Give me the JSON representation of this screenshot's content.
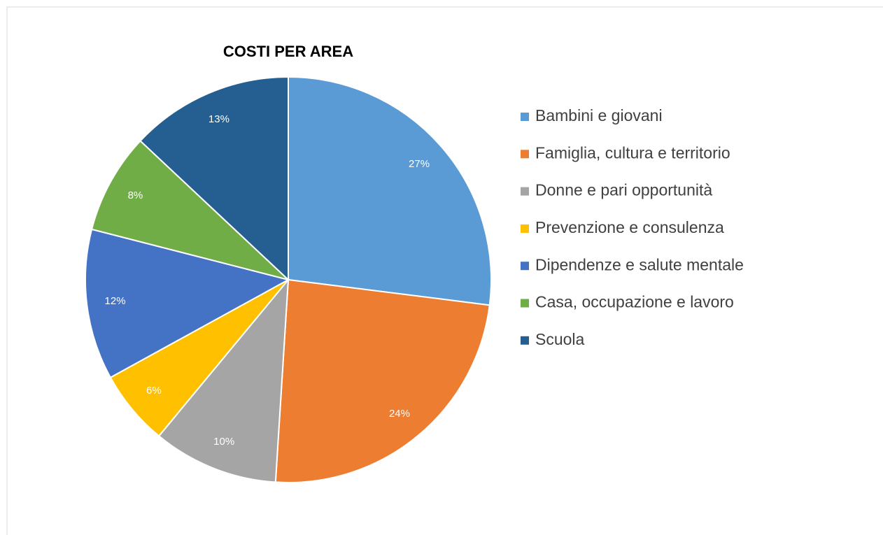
{
  "chart_data": {
    "type": "pie",
    "title": "COSTI PER AREA",
    "categories": [
      "Bambini e giovani",
      "Famiglia, cultura e territorio",
      "Donne e pari opportunità",
      "Prevenzione e consulenza",
      "Dipendenze e salute mentale",
      "Casa, occupazione e lavoro",
      "Scuola"
    ],
    "values": [
      27,
      24,
      10,
      6,
      12,
      8,
      13
    ],
    "value_labels": [
      "27%",
      "24%",
      "10%",
      "6%",
      "12%",
      "8%",
      "13%"
    ],
    "colors": [
      "#5b9bd5",
      "#ed7d31",
      "#a5a5a5",
      "#ffc000",
      "#4472c4",
      "#70ad47",
      "#255e91"
    ],
    "legend": "right"
  }
}
